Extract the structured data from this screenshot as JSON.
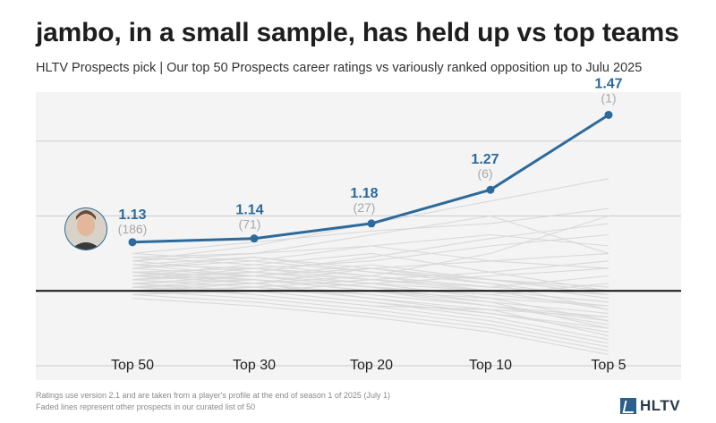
{
  "title": "jambo, in a small sample, has held up vs top teams",
  "subtitle": "HLTV Prospects pick | Our top 50 Prospects career ratings vs variously ranked opposition up to Julu 2025",
  "footnote_line1": "Ratings use version 2.1 and are taken from a player's profile at the end of season 1 of 2025 (July 1)",
  "footnote_line2": "Faded lines represent other prospects in our curated list of 50",
  "logo_text": "HLTV",
  "colors": {
    "main": "#2c6a9c",
    "faded": "#d9d9d9",
    "grid": "#cccccc",
    "baseline": "#111111",
    "plot_bg": "#f4f4f4",
    "count": "#a8a8a8"
  },
  "icons": {
    "player": "player-avatar-icon",
    "logo": "hltv-logo-icon"
  },
  "chart_data": {
    "type": "line",
    "categories": [
      "Top 50",
      "Top 30",
      "Top 20",
      "Top 10",
      "Top 5"
    ],
    "ylim": [
      0.8,
      1.55
    ],
    "gridlines": [
      0.8,
      1.0,
      1.2,
      1.4
    ],
    "baseline": 1.0,
    "grid": true,
    "series": [
      {
        "values": [
          1.13,
          1.14,
          1.18,
          1.27,
          1.47
        ],
        "labels": [
          "1.13",
          "1.14",
          "1.18",
          "1.27",
          "1.47"
        ],
        "counts": [
          "(186)",
          "(71)",
          "(27)",
          "(6)",
          "(1)"
        ]
      }
    ],
    "faded_series": [
      [
        1.1,
        1.08,
        1.05,
        1.02,
        0.95
      ],
      [
        1.09,
        1.1,
        1.12,
        1.08,
        1.1
      ],
      [
        1.08,
        1.05,
        1.02,
        0.98,
        0.92
      ],
      [
        1.07,
        1.06,
        1.03,
        1.0,
        0.97
      ],
      [
        1.06,
        1.04,
        1.01,
        0.97,
        0.9
      ],
      [
        1.05,
        1.06,
        1.08,
        1.12,
        1.15
      ],
      [
        1.05,
        1.02,
        0.98,
        0.95,
        0.88
      ],
      [
        1.04,
        1.03,
        1.0,
        0.97,
        0.94
      ],
      [
        1.04,
        1.07,
        1.1,
        1.05,
        1.0
      ],
      [
        1.03,
        1.01,
        0.98,
        0.94,
        0.89
      ],
      [
        1.03,
        1.04,
        1.06,
        1.08,
        1.06
      ],
      [
        1.02,
        1.0,
        0.97,
        0.93,
        0.87
      ],
      [
        1.02,
        1.03,
        1.01,
        0.99,
        1.02
      ],
      [
        1.01,
        0.99,
        0.96,
        0.92,
        0.86
      ],
      [
        1.01,
        1.02,
        1.04,
        1.1,
        1.2
      ],
      [
        1.0,
        0.98,
        0.95,
        0.91,
        0.85
      ],
      [
        1.0,
        1.01,
        1.03,
        1.05,
        1.08
      ],
      [
        0.99,
        0.97,
        0.94,
        0.9,
        0.84
      ],
      [
        0.99,
        1.0,
        1.02,
        1.0,
        0.97
      ],
      [
        0.98,
        0.96,
        0.93,
        0.89,
        0.83
      ],
      [
        1.08,
        1.12,
        1.18,
        1.24,
        1.3
      ],
      [
        1.07,
        1.09,
        1.06,
        1.03,
        0.99
      ],
      [
        1.06,
        1.08,
        1.12,
        1.15,
        1.12
      ],
      [
        1.05,
        1.03,
        1.0,
        0.96,
        0.91
      ],
      [
        1.04,
        1.05,
        1.03,
        1.01,
        0.99
      ],
      [
        1.03,
        1.05,
        1.09,
        1.14,
        1.18
      ],
      [
        1.02,
        0.99,
        0.96,
        0.95,
        0.93
      ],
      [
        1.01,
        1.03,
        1.0,
        0.98,
        0.96
      ],
      [
        1.0,
        1.02,
        1.06,
        1.02,
        0.98
      ],
      [
        0.99,
        1.01,
        0.99,
        0.96,
        0.92
      ],
      [
        1.1,
        1.13,
        1.16,
        1.18,
        1.22
      ],
      [
        1.09,
        1.07,
        1.04,
        1.01,
        1.04
      ],
      [
        1.08,
        1.1,
        1.15,
        1.2,
        1.1
      ],
      [
        1.07,
        1.04,
        1.01,
        0.99,
        0.96
      ],
      [
        1.06,
        1.09,
        1.05,
        1.03,
        1.01
      ],
      [
        1.05,
        1.04,
        1.02,
        1.04,
        1.06
      ],
      [
        1.04,
        1.02,
        0.99,
        0.96,
        0.93
      ],
      [
        1.03,
        1.06,
        1.04,
        1.0,
        0.95
      ],
      [
        1.02,
        1.04,
        1.07,
        1.03,
        1.0
      ],
      [
        1.01,
        1.0,
        0.97,
        0.94,
        0.9
      ]
    ]
  }
}
